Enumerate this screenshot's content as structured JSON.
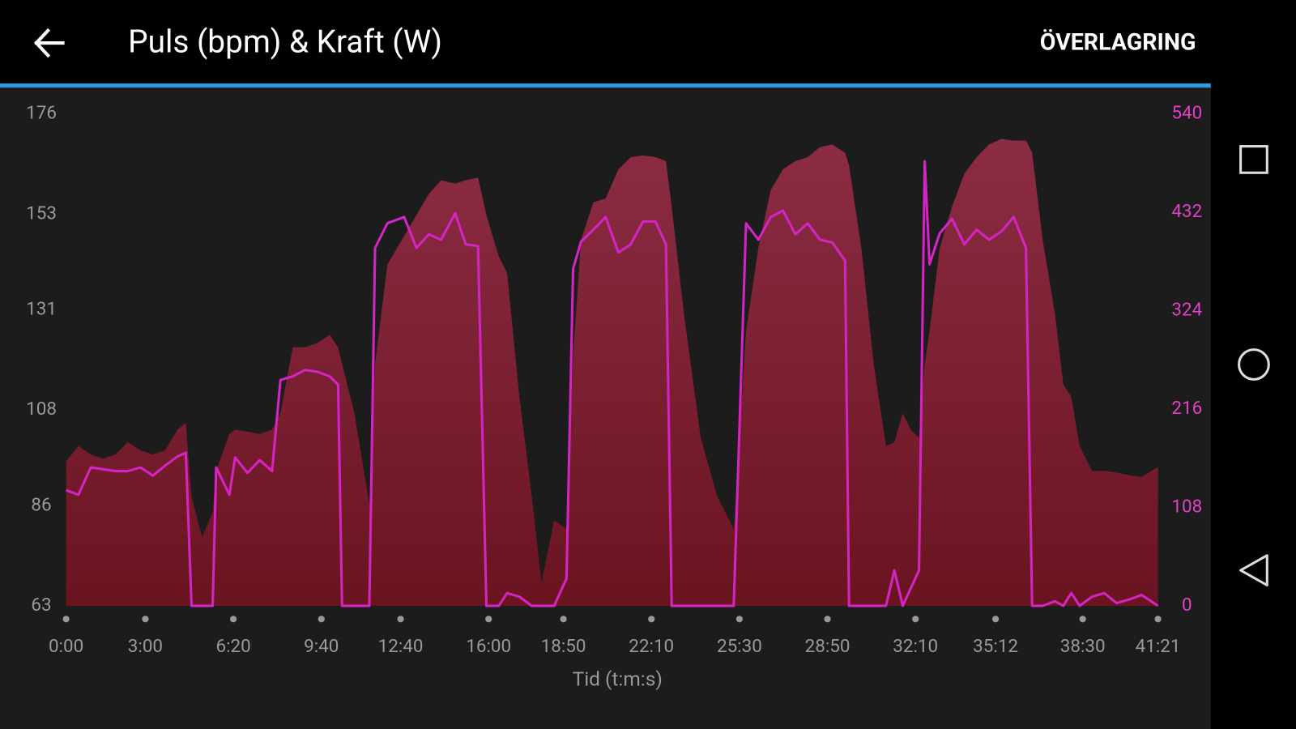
{
  "header": {
    "title": "Puls (bpm) & Kraft (W)",
    "action": "ÖVERLAGRING"
  },
  "chart_data": {
    "type": "area",
    "x_label": "Tid (t:m:s)",
    "x": [
      0,
      28,
      56,
      84,
      112,
      140,
      169,
      197,
      225,
      253,
      272,
      285,
      309,
      333,
      341,
      371,
      384,
      412,
      440,
      468,
      487,
      515,
      543,
      571,
      599,
      618,
      627,
      655,
      689,
      702,
      730,
      768,
      796,
      824,
      852,
      884,
      908,
      936,
      955,
      983,
      1002,
      1030,
      1058,
      1080,
      1109,
      1137,
      1152,
      1170,
      1198,
      1226,
      1255,
      1283,
      1311,
      1339,
      1363,
      1376,
      1404,
      1442,
      1479,
      1517,
      1545,
      1573,
      1601,
      1629,
      1657,
      1685,
      1713,
      1741,
      1770,
      1779,
      1807,
      1835,
      1863,
      1882,
      1901,
      1919,
      1938,
      1951,
      1962,
      1985,
      2013,
      2041,
      2069,
      2097,
      2125,
      2153,
      2181,
      2195,
      2219,
      2247,
      2266,
      2284,
      2303,
      2331,
      2359,
      2387,
      2416,
      2444,
      2481
    ],
    "series": [
      {
        "kind": "area",
        "color": "#7a1e30",
        "axis": "y",
        "values": [
          96.2,
          99.7,
          97.8,
          96.8,
          97.8,
          100.6,
          98.7,
          97.8,
          98.7,
          103.5,
          105,
          88,
          78.8,
          84.5,
          94,
          102.5,
          103.5,
          103,
          102.5,
          103.5,
          107.3,
          122.4,
          122.4,
          123.4,
          125.3,
          122.4,
          118.6,
          107.3,
          86.4,
          118.6,
          141.4,
          148,
          152.8,
          157.6,
          160.8,
          160,
          160.8,
          161.4,
          152.8,
          143.3,
          139.5,
          111,
          88.3,
          68.3,
          82.6,
          80.7,
          120.5,
          147.1,
          155.7,
          156.6,
          163.3,
          166.1,
          166.5,
          166.1,
          165.2,
          154.7,
          130,
          101.6,
          88.3,
          80.7,
          126.2,
          145.2,
          158.5,
          163.3,
          165.2,
          166.1,
          168.4,
          169,
          167.1,
          164.2,
          145.2,
          118.6,
          99.7,
          100.6,
          107.3,
          103.5,
          101.6,
          118.6,
          126.2,
          145.2,
          154.7,
          162.3,
          166.1,
          169,
          170.3,
          169.9,
          169.9,
          167.1,
          147.1,
          130,
          113.9,
          111,
          99.7,
          94,
          94,
          93.6,
          93,
          92.6,
          94.9
        ]
      },
      {
        "kind": "line",
        "color": "#d424c4",
        "axis": "y2",
        "values": [
          127,
          122,
          152,
          150,
          148,
          148,
          152,
          143,
          154,
          164,
          168,
          0,
          0,
          0,
          152,
          122,
          163,
          146,
          160,
          148,
          248,
          252,
          259,
          257,
          252,
          243,
          0,
          0,
          0,
          393,
          420,
          427,
          393,
          408,
          402,
          431,
          397,
          395,
          0,
          0,
          14,
          10,
          0,
          0,
          0,
          30,
          370,
          400,
          413,
          427,
          388,
          397,
          422,
          422,
          397,
          0,
          0,
          0,
          0,
          0,
          420,
          402,
          427,
          434,
          408,
          420,
          402,
          399,
          379,
          0,
          0,
          0,
          0,
          39,
          0,
          19,
          39,
          488,
          375,
          409,
          425,
          397,
          413,
          402,
          411,
          427,
          393,
          0,
          0,
          5,
          0,
          14,
          0,
          10,
          14,
          3,
          7,
          12,
          0
        ]
      }
    ],
    "xlim": [
      0,
      2481
    ],
    "xticks": [
      {
        "value": 0,
        "label": "0:00"
      },
      {
        "value": 180,
        "label": "3:00"
      },
      {
        "value": 380,
        "label": "6:20"
      },
      {
        "value": 580,
        "label": "9:40"
      },
      {
        "value": 760,
        "label": "12:40"
      },
      {
        "value": 960,
        "label": "16:00"
      },
      {
        "value": 1130,
        "label": "18:50"
      },
      {
        "value": 1330,
        "label": "22:10"
      },
      {
        "value": 1530,
        "label": "25:30"
      },
      {
        "value": 1730,
        "label": "28:50"
      },
      {
        "value": 1930,
        "label": "32:10"
      },
      {
        "value": 2112,
        "label": "35:12"
      },
      {
        "value": 2310,
        "label": "38:30"
      },
      {
        "value": 2481,
        "label": "41:21"
      }
    ],
    "ylim": [
      63,
      176
    ],
    "yticks": [
      63,
      86,
      108,
      131,
      153,
      176
    ],
    "y2lim": [
      0,
      540
    ],
    "y2ticks": [
      0,
      108,
      216,
      324,
      432,
      540
    ],
    "y2_color": "#e040c8"
  }
}
